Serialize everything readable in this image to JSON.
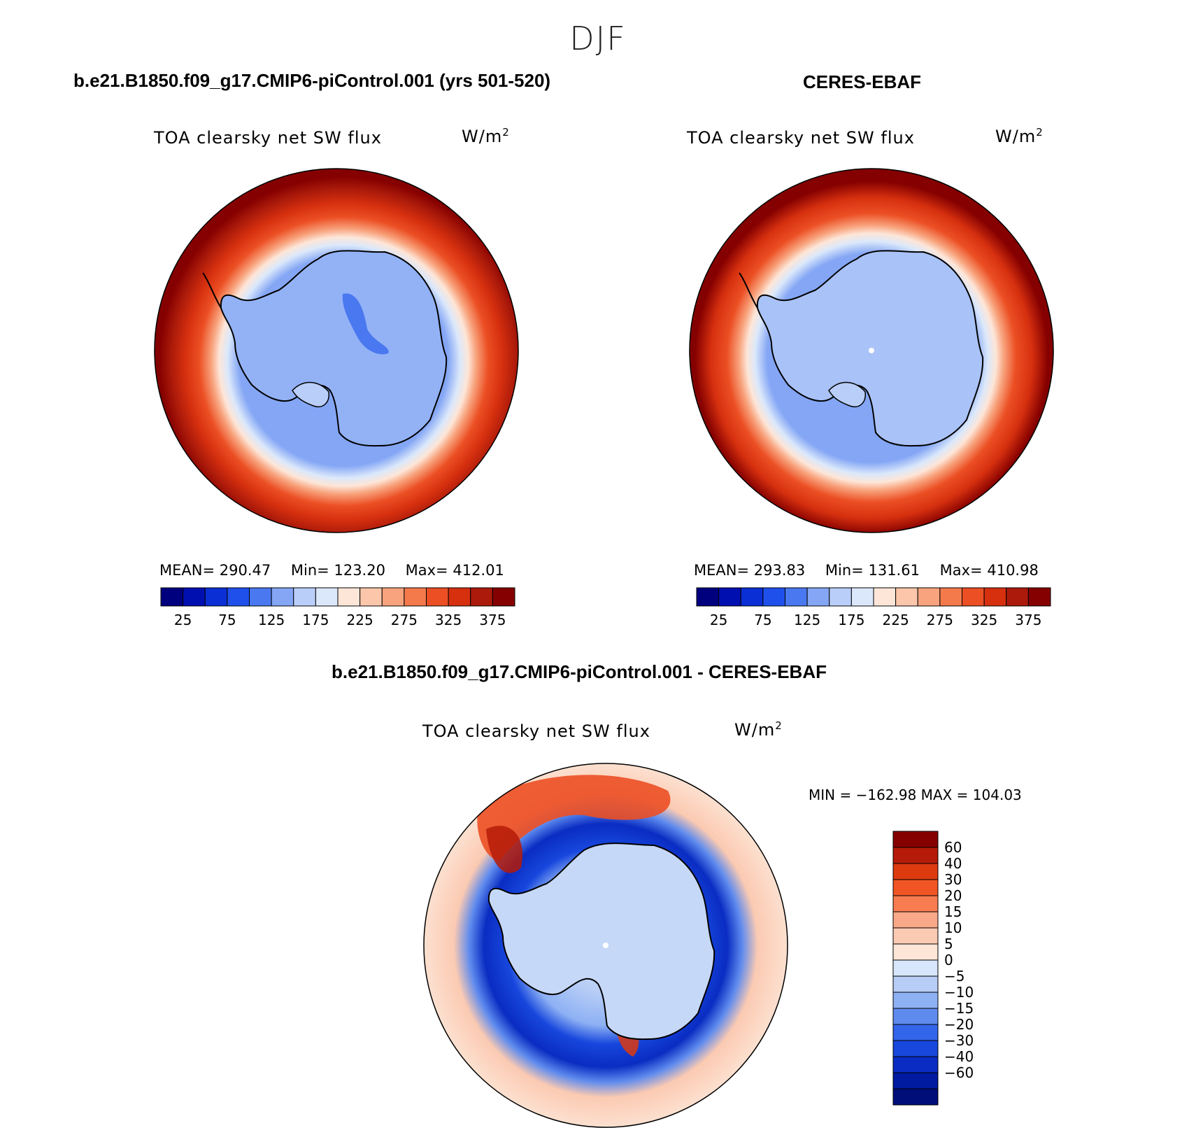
{
  "season": "DJF",
  "panels": [
    {
      "title": "b.e21.B1850.f09_g17.CMIP6-piControl.001 (yrs 501-520)",
      "variable": "TOA clearsky net SW flux",
      "units_base": "W/m",
      "units_exp": "2",
      "stats": {
        "mean_label": "MEAN=",
        "mean": "290.47",
        "min_label": "Min=",
        "min": "123.20",
        "max_label": "Max=",
        "max": "412.01"
      }
    },
    {
      "title": "CERES-EBAF",
      "variable": "TOA clearsky net SW flux",
      "units_base": "W/m",
      "units_exp": "2",
      "stats": {
        "mean_label": "MEAN=",
        "mean": "293.83",
        "min_label": "Min=",
        "min": "131.61",
        "max_label": "Max=",
        "max": "410.98"
      }
    }
  ],
  "diff_panel": {
    "title": "b.e21.B1850.f09_g17.CMIP6-piControl.001 - CERES-EBAF",
    "variable": "TOA clearsky net SW flux",
    "units_base": "W/m",
    "units_exp": "2",
    "minmax": "MIN = −162.98 MAX = 104.03"
  },
  "colorbar_abs": {
    "colors": [
      "#00007f",
      "#0010b0",
      "#0a2fd4",
      "#1f50ec",
      "#4a78f0",
      "#84a6f5",
      "#b9cef8",
      "#dbe8fb",
      "#fde6d8",
      "#fbc6aa",
      "#f8a37d",
      "#f47a4c",
      "#ec4f24",
      "#d6300f",
      "#ab1a0a",
      "#850000"
    ],
    "labels": [
      "25",
      "75",
      "125",
      "175",
      "225",
      "275",
      "325",
      "375"
    ]
  },
  "colorbar_diff": {
    "colors": [
      "#850000",
      "#b51b08",
      "#dd3a10",
      "#f25524",
      "#f77c4f",
      "#f9a988",
      "#fbcab2",
      "#fde6d8",
      "#d7e6fa",
      "#b7cdf6",
      "#8eb1f4",
      "#5f8bee",
      "#3365ea",
      "#1747dd",
      "#0a2cc2",
      "#001aa0",
      "#000e7a"
    ],
    "labels": [
      "60",
      "40",
      "30",
      "20",
      "15",
      "10",
      "5",
      "0",
      "−5",
      "−10",
      "−15",
      "−20",
      "−30",
      "−40",
      "−60"
    ]
  }
}
